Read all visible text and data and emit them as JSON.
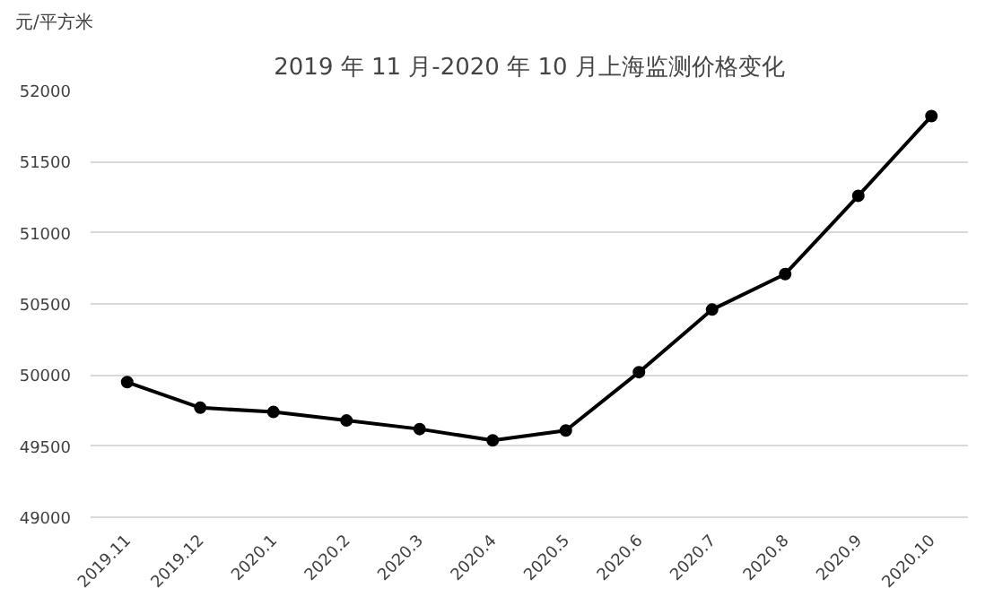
{
  "chart_data": {
    "type": "line",
    "title": "2019 年 11 月-2020 年 10 月上海监测价格变化",
    "ylabel": "元/平方米",
    "categories": [
      "2019.11",
      "2019.12",
      "2020.1",
      "2020.2",
      "2020.3",
      "2020.4",
      "2020.5",
      "2020.6",
      "2020.7",
      "2020.8",
      "2020.9",
      "2020.10"
    ],
    "series": [
      {
        "color": "#000000",
        "values": [
          49950,
          49770,
          49740,
          49680,
          49620,
          49540,
          49610,
          50020,
          50460,
          50710,
          51260,
          51820
        ]
      }
    ],
    "ylim": [
      49000,
      52000
    ],
    "yticks": [
      49000,
      49500,
      50000,
      50500,
      51000,
      51500,
      52000
    ],
    "grid": "y",
    "marker": "circle",
    "line_style": "solid"
  }
}
